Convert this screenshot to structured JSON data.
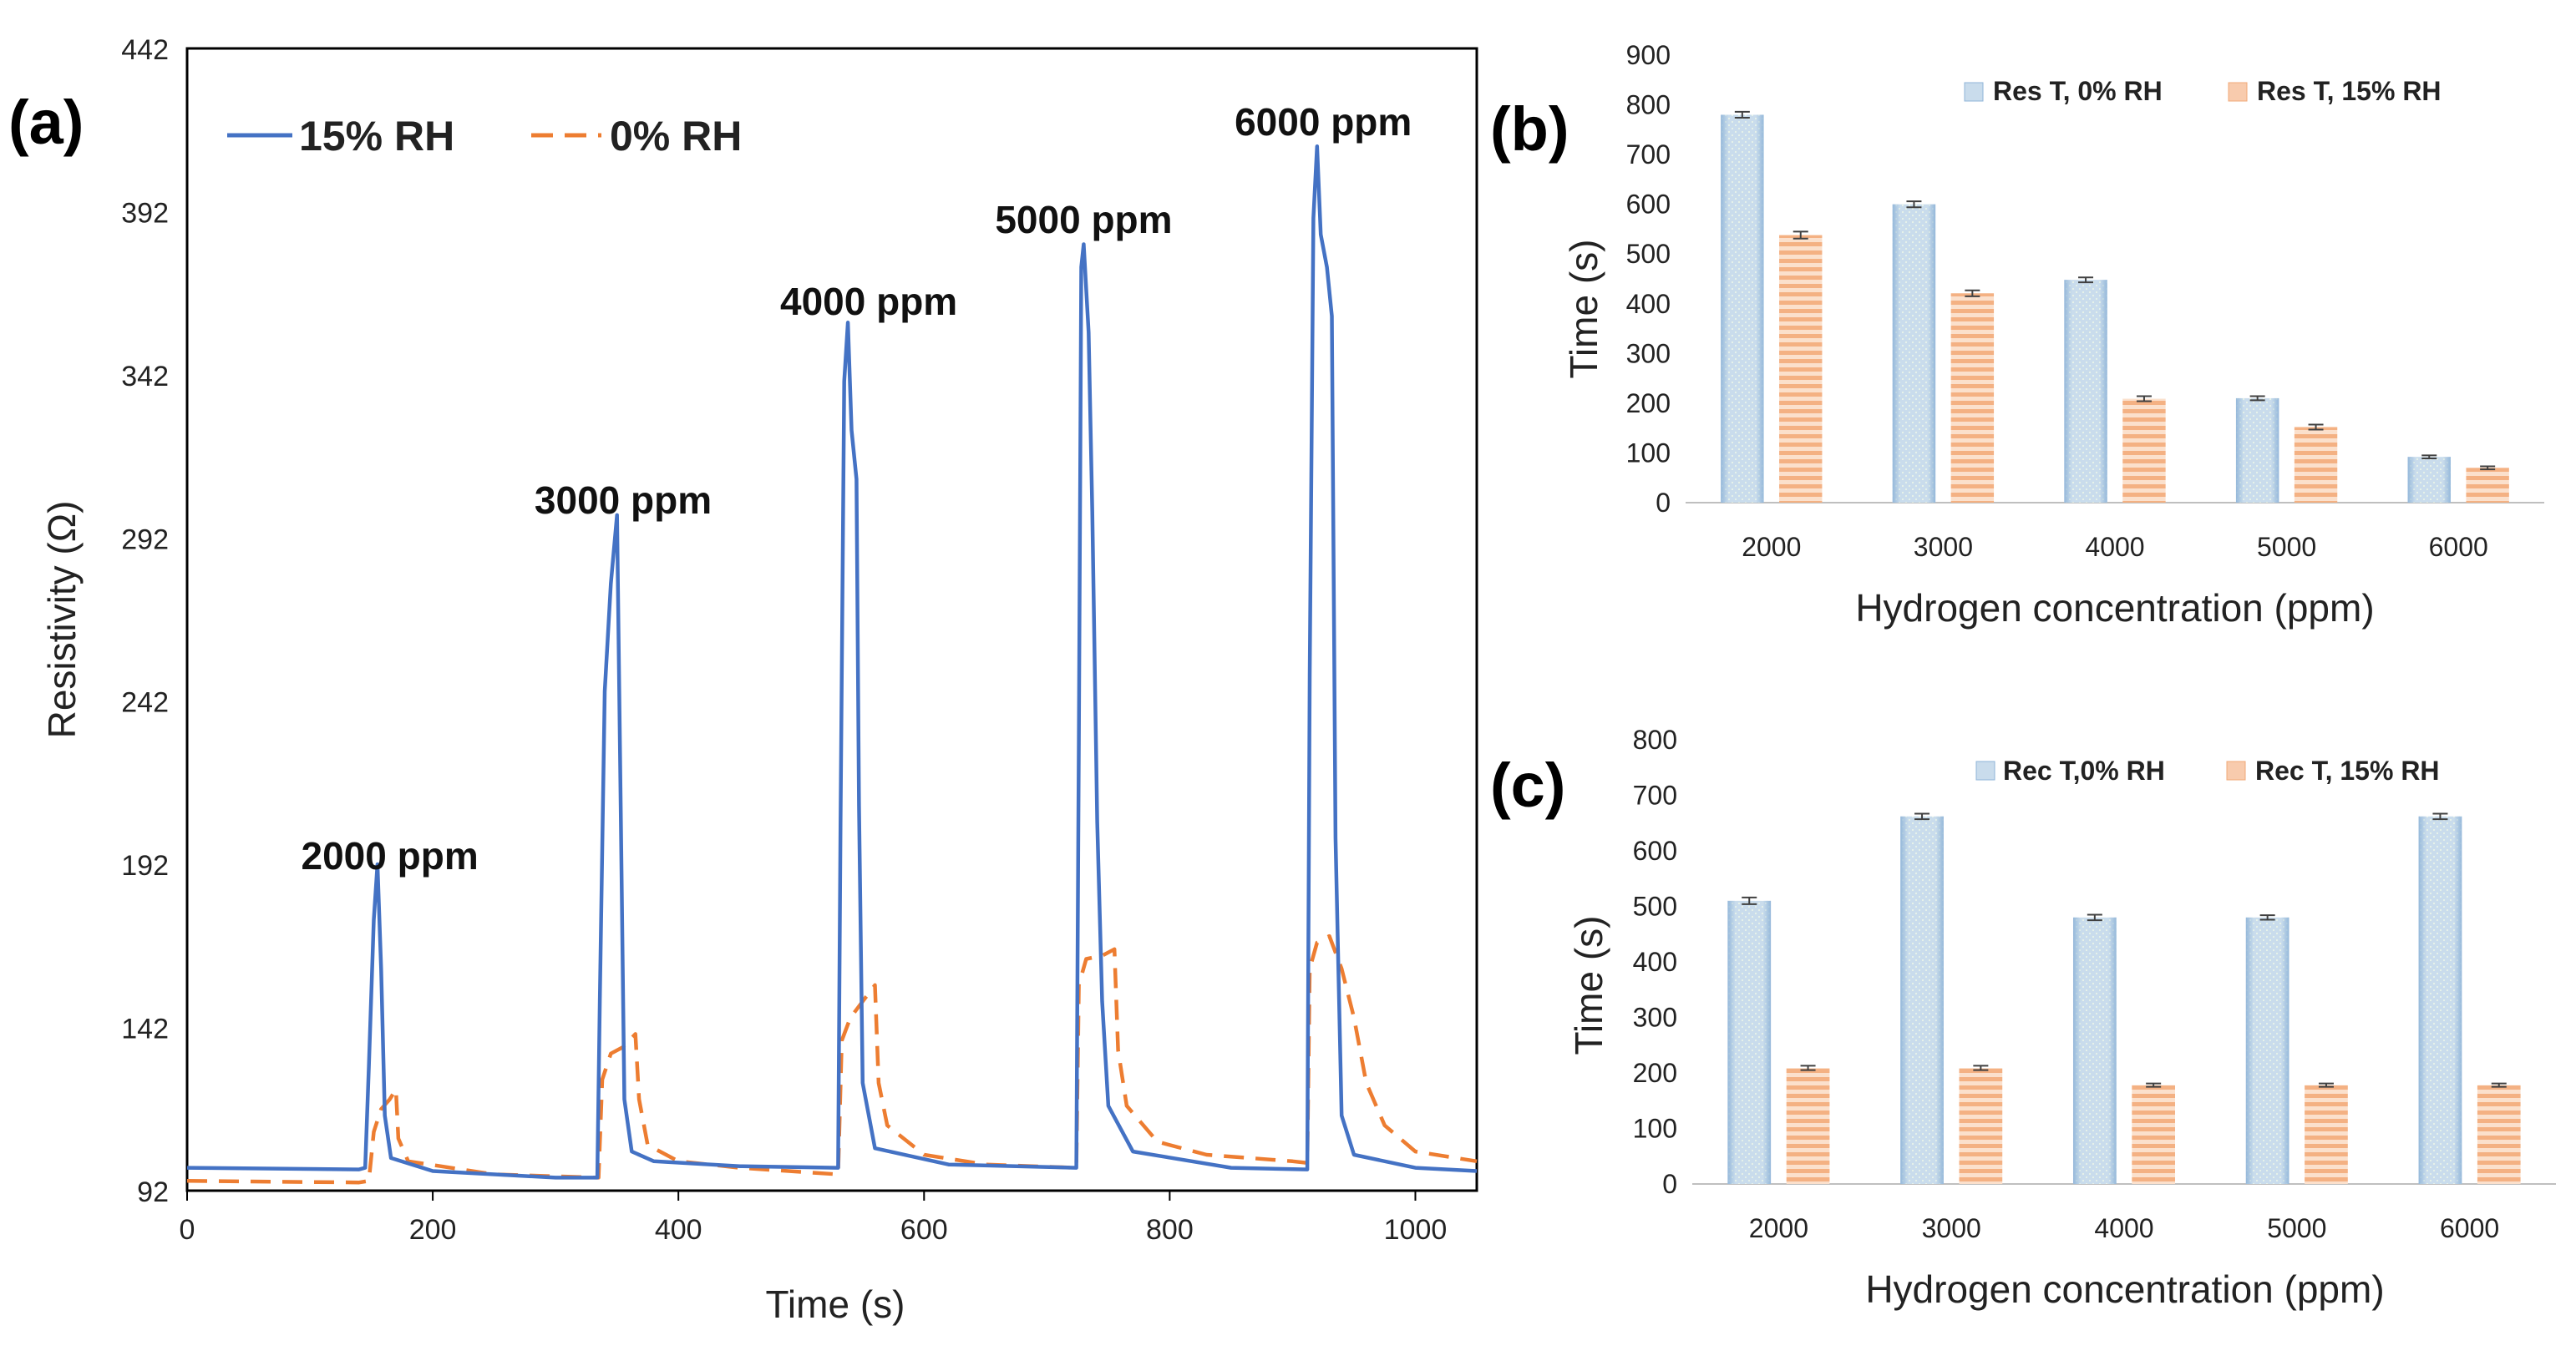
{
  "colors": {
    "blue": "#4472C4",
    "orange": "#ED7D31",
    "bar_blue_fill": "#C9DCEC",
    "bar_orange_fill": "#F8CBAD"
  },
  "chart_data": [
    {
      "panel": "(a)",
      "type": "line",
      "xlabel": "Time (s)",
      "ylabel": "Resistivity (Ω)",
      "xlim": [
        0,
        1050
      ],
      "ylim": [
        92,
        442
      ],
      "xticks": [
        0,
        200,
        400,
        600,
        800,
        1000
      ],
      "yticks": [
        92,
        142,
        192,
        242,
        292,
        342,
        392,
        442
      ],
      "legend": [
        {
          "name": "15% RH",
          "style": "solid",
          "color": "#4472C4"
        },
        {
          "name": "0% RH",
          "style": "dashed",
          "color": "#ED7D31"
        }
      ],
      "annotations": [
        {
          "text": "2000 ppm",
          "x": 165,
          "y": 193
        },
        {
          "text": "3000 ppm",
          "x": 355,
          "y": 302
        },
        {
          "text": "4000 ppm",
          "x": 555,
          "y": 363
        },
        {
          "text": "5000 ppm",
          "x": 730,
          "y": 388
        },
        {
          "text": "6000 ppm",
          "x": 925,
          "y": 418
        }
      ],
      "series": [
        {
          "name": "15% RH",
          "style": "solid",
          "color": "#4472C4",
          "points": [
            [
              0,
              99
            ],
            [
              140,
              98.5
            ],
            [
              145,
              99
            ],
            [
              148,
              130
            ],
            [
              152,
              175
            ],
            [
              155,
              192
            ],
            [
              158,
              160
            ],
            [
              161,
              115
            ],
            [
              166,
              102
            ],
            [
              200,
              98
            ],
            [
              300,
              96
            ],
            [
              334,
              96
            ],
            [
              336,
              150
            ],
            [
              340,
              245
            ],
            [
              345,
              278
            ],
            [
              350,
              299
            ],
            [
              353,
              210
            ],
            [
              356,
              120
            ],
            [
              362,
              104
            ],
            [
              380,
              101
            ],
            [
              450,
              99.5
            ],
            [
              530,
              99
            ],
            [
              532,
              205
            ],
            [
              535,
              340
            ],
            [
              538,
              358
            ],
            [
              541,
              325
            ],
            [
              545,
              310
            ],
            [
              547,
              210
            ],
            [
              550,
              125
            ],
            [
              560,
              105
            ],
            [
              620,
              100
            ],
            [
              724,
              99
            ],
            [
              726,
              230
            ],
            [
              728,
              375
            ],
            [
              730,
              382
            ],
            [
              734,
              355
            ],
            [
              737,
              300
            ],
            [
              741,
              205
            ],
            [
              745,
              150
            ],
            [
              750,
              118
            ],
            [
              770,
              104
            ],
            [
              850,
              99
            ],
            [
              912,
              98.5
            ],
            [
              914,
              250
            ],
            [
              917,
              390
            ],
            [
              920,
              412
            ],
            [
              923,
              385
            ],
            [
              928,
              375
            ],
            [
              932,
              360
            ],
            [
              935,
              200
            ],
            [
              940,
              115
            ],
            [
              950,
              103
            ],
            [
              1000,
              99
            ],
            [
              1050,
              98
            ]
          ]
        },
        {
          "name": "0% RH",
          "style": "dashed",
          "color": "#ED7D31",
          "points": [
            [
              0,
              95
            ],
            [
              140,
              94.5
            ],
            [
              148,
              95
            ],
            [
              152,
              110
            ],
            [
              158,
              117
            ],
            [
              165,
              120
            ],
            [
              170,
              123
            ],
            [
              172,
              108
            ],
            [
              180,
              101
            ],
            [
              250,
              97
            ],
            [
              335,
              96
            ],
            [
              338,
              126
            ],
            [
              345,
              134
            ],
            [
              355,
              136
            ],
            [
              365,
              140
            ],
            [
              368,
              120
            ],
            [
              375,
              106
            ],
            [
              400,
              101
            ],
            [
              450,
              99
            ],
            [
              530,
              97
            ],
            [
              533,
              138
            ],
            [
              540,
              145
            ],
            [
              550,
              150
            ],
            [
              560,
              155
            ],
            [
              563,
              125
            ],
            [
              570,
              112
            ],
            [
              600,
              103
            ],
            [
              650,
              100
            ],
            [
              724,
              99
            ],
            [
              726,
              155
            ],
            [
              732,
              163
            ],
            [
              745,
              164
            ],
            [
              755,
              166
            ],
            [
              758,
              135
            ],
            [
              765,
              118
            ],
            [
              790,
              107
            ],
            [
              830,
              103
            ],
            [
              900,
              101
            ],
            [
              912,
              100.5
            ],
            [
              914,
              160
            ],
            [
              920,
              168
            ],
            [
              930,
              170
            ],
            [
              940,
              160
            ],
            [
              950,
              145
            ],
            [
              960,
              125
            ],
            [
              975,
              112
            ],
            [
              1000,
              104
            ],
            [
              1050,
              101
            ]
          ]
        }
      ]
    },
    {
      "panel": "(b)",
      "type": "bar",
      "xlabel": "Hydrogen concentration (ppm)",
      "ylabel": "Time (s)",
      "ylim": [
        0,
        900
      ],
      "yticks": [
        0,
        100,
        200,
        300,
        400,
        500,
        600,
        700,
        800,
        900
      ],
      "categories": [
        "2000",
        "3000",
        "4000",
        "5000",
        "6000"
      ],
      "series": [
        {
          "name": "Res T, 0% RH",
          "color": "#C9DCEC",
          "values": [
            780,
            600,
            448,
            210,
            92
          ],
          "errors": [
            6,
            6,
            5,
            4,
            3
          ]
        },
        {
          "name": "Res T, 15% RH",
          "color": "#F8CBAD",
          "values": [
            538,
            421,
            209,
            152,
            70
          ],
          "errors": [
            7,
            6,
            5,
            5,
            3
          ]
        }
      ]
    },
    {
      "panel": "(c)",
      "type": "bar",
      "xlabel": "Hydrogen concentration (ppm)",
      "ylabel": "Time (s)",
      "ylim": [
        0,
        800
      ],
      "yticks": [
        0,
        100,
        200,
        300,
        400,
        500,
        600,
        700,
        800
      ],
      "categories": [
        "2000",
        "3000",
        "4000",
        "5000",
        "6000"
      ],
      "series": [
        {
          "name": "Rec T,0% RH",
          "color": "#C9DCEC",
          "values": [
            510,
            662,
            480,
            480,
            662
          ],
          "errors": [
            6,
            5,
            5,
            4,
            5
          ]
        },
        {
          "name": "Rec T, 15% RH",
          "color": "#F8CBAD",
          "values": [
            209,
            209,
            178,
            178,
            178
          ],
          "errors": [
            4,
            4,
            3,
            3,
            3
          ]
        }
      ]
    }
  ]
}
